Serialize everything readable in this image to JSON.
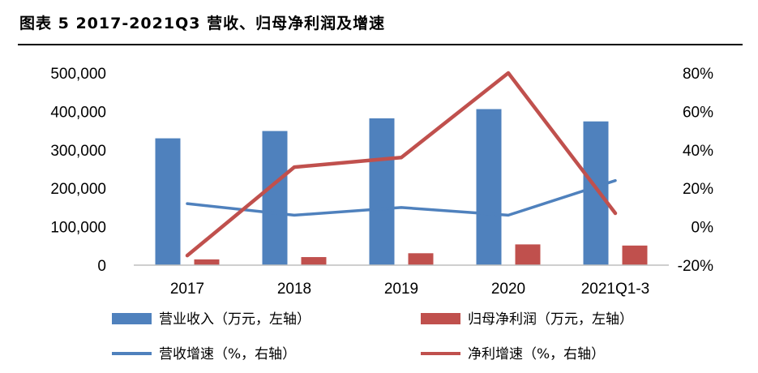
{
  "header": {
    "title": "图表 5 2017-2021Q3 营收、归母净利润及增速"
  },
  "chart_data": {
    "type": "bar",
    "categories": [
      "2017",
      "2018",
      "2019",
      "2020",
      "2021Q1-3"
    ],
    "y_left": {
      "range": [
        0,
        500000
      ],
      "ticks": [
        0,
        100000,
        200000,
        300000,
        400000,
        500000
      ],
      "tick_labels": [
        "0",
        "100,000",
        "200,000",
        "300,000",
        "400,000",
        "500,000"
      ]
    },
    "y_right": {
      "range": [
        -20,
        80
      ],
      "ticks": [
        -20,
        0,
        20,
        40,
        60,
        80
      ],
      "tick_labels": [
        "-20%",
        "0%",
        "20%",
        "40%",
        "60%",
        "80%"
      ]
    },
    "series": [
      {
        "name": "营业收入（万元，左轴）",
        "kind": "bar",
        "axis": "left",
        "color": "#4f81bd",
        "values": [
          330000,
          349000,
          382000,
          406000,
          374000
        ]
      },
      {
        "name": "归母净利润（万元，左轴）",
        "kind": "bar",
        "axis": "left",
        "color": "#c0504d",
        "values": [
          15000,
          21000,
          31000,
          54000,
          51000
        ]
      },
      {
        "name": "营收增速（%，右轴）",
        "kind": "line",
        "axis": "right",
        "color": "#4f81bd",
        "values": [
          12,
          6,
          10,
          6,
          24
        ]
      },
      {
        "name": "净利增速（%，右轴）",
        "kind": "line",
        "axis": "right",
        "color": "#c0504d",
        "values": [
          -15,
          31,
          36,
          80,
          7
        ]
      }
    ],
    "grid": false,
    "legend": "bottom"
  }
}
